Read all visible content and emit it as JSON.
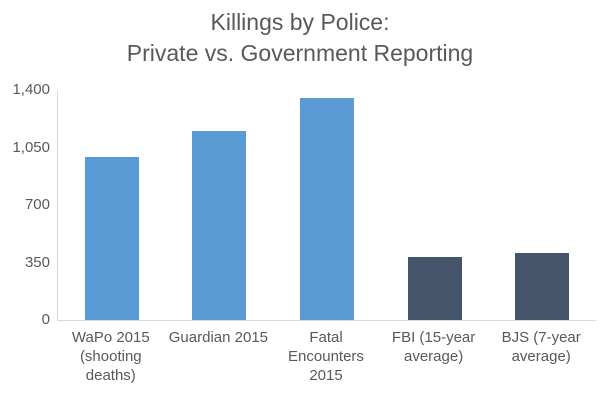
{
  "title": "Killings by Police:\nPrivate vs. Government Reporting",
  "chart_data": {
    "type": "bar",
    "title": "Killings by Police: Private vs. Government Reporting",
    "categories": [
      "WaPo 2015 (shooting deaths)",
      "Guardian 2015",
      "Fatal Encounters 2015",
      "FBI (15-year average)",
      "BJS (7-year average)"
    ],
    "category_label_lines": [
      "WaPo 2015\n(shooting\ndeaths)",
      "Guardian 2015",
      "Fatal\nEncounters\n2015",
      "FBI (15-year\naverage)",
      "BJS (7-year\naverage)"
    ],
    "values": [
      990,
      1150,
      1350,
      385,
      410
    ],
    "bar_colors": [
      "#5b9bd5",
      "#5b9bd5",
      "#5b9bd5",
      "#44546a",
      "#44546a"
    ],
    "ylim": [
      0,
      1400
    ],
    "y_ticks": [
      {
        "value": 0,
        "label": "0"
      },
      {
        "value": 350,
        "label": "350"
      },
      {
        "value": 700,
        "label": "700"
      },
      {
        "value": 1050,
        "label": "1,050"
      },
      {
        "value": 1400,
        "label": "1,400"
      }
    ],
    "xlabel": "",
    "ylabel": "",
    "grid": false,
    "legend": false,
    "series_meaning": {
      "private_reporting_color": "#5b9bd5",
      "government_reporting_color": "#44546a"
    }
  },
  "colors": {
    "background": "#ffffff",
    "text": "#595959",
    "axis_line": "#d9d9d9"
  }
}
